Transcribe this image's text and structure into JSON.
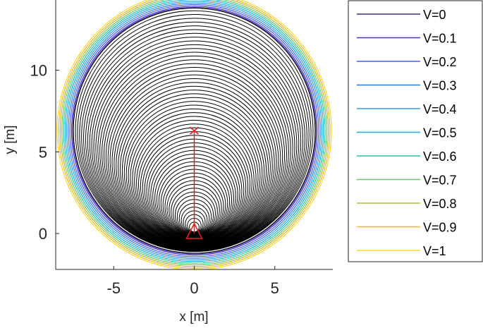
{
  "chart_data": {
    "type": "line",
    "title": "",
    "xlabel": "x [m]",
    "ylabel": "y [m]",
    "xlim": [
      -8.6,
      8.6
    ],
    "ylim": [
      -2.2,
      14.3
    ],
    "xticks": [
      {
        "value": -5,
        "label": "-5"
      },
      {
        "value": 0,
        "label": "0"
      },
      {
        "value": 5,
        "label": "5"
      }
    ],
    "yticks": [
      {
        "value": 0,
        "label": "0"
      },
      {
        "value": 5,
        "label": "5"
      },
      {
        "value": 10,
        "label": "10"
      }
    ],
    "grid": false,
    "legend_position": "outside-right",
    "background_contours": {
      "description_color": "#000000",
      "center": [
        0,
        6.3
      ],
      "min_radius": 0.3,
      "max_radius": 7.5,
      "count": 58
    },
    "series": [
      {
        "name": "V=0",
        "color": "#3e2a86",
        "radius": 7.55
      },
      {
        "name": "V=0.1",
        "color": "#4331e0",
        "radius": 7.62
      },
      {
        "name": "V=0.2",
        "color": "#4a5ce8",
        "radius": 7.72
      },
      {
        "name": "V=0.3",
        "color": "#2f7ee6",
        "radius": 7.82
      },
      {
        "name": "V=0.4",
        "color": "#3a9be0",
        "radius": 7.92
      },
      {
        "name": "V=0.5",
        "color": "#12b2d2",
        "radius": 8.02
      },
      {
        "name": "V=0.6",
        "color": "#2fbfa5",
        "radius": 8.12
      },
      {
        "name": "V=0.7",
        "color": "#6cc56a",
        "radius": 8.22
      },
      {
        "name": "V=0.8",
        "color": "#b0bd3c",
        "radius": 8.32
      },
      {
        "name": "V=0.9",
        "color": "#f0b53a",
        "radius": 8.42
      },
      {
        "name": "V=1",
        "color": "#f5dc2a",
        "radius": 8.52
      }
    ],
    "trajectory": {
      "color": "#e41a1c",
      "start": [
        0,
        0
      ],
      "end": [
        0,
        6.3
      ],
      "start_marker": "triangle",
      "end_marker": "x"
    }
  }
}
